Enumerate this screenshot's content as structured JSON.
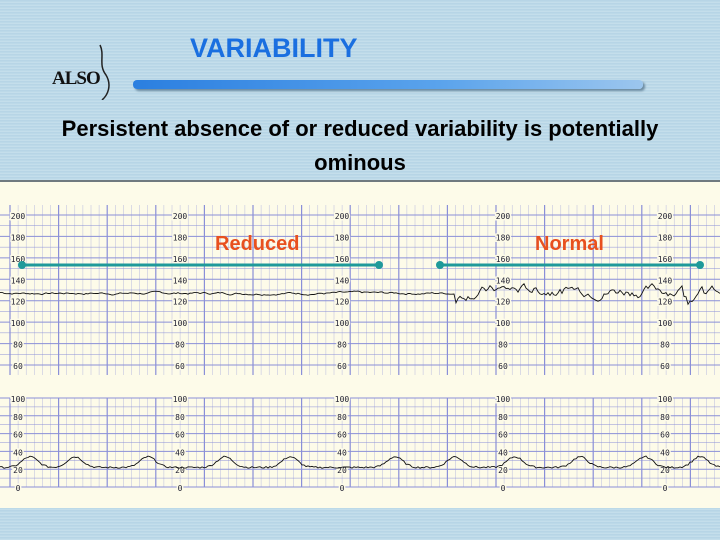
{
  "logo": {
    "text": "ALSO"
  },
  "title": "VARIABILITY",
  "subtitle": "Persistent absence of or reduced variability is potentially ominous",
  "tracing": {
    "labels": {
      "reduced": "Reduced",
      "normal": "Normal"
    },
    "fhr_ticks": [
      "200",
      "180",
      "160",
      "140",
      "120",
      "100",
      "80",
      "60"
    ],
    "uc_ticks": [
      "100",
      "80",
      "60",
      "40",
      "20",
      "0"
    ],
    "colors": {
      "grid": "#8a8fd8",
      "marker": "#1f9a9a",
      "label": "#e8501e",
      "trace": "#111111"
    }
  }
}
